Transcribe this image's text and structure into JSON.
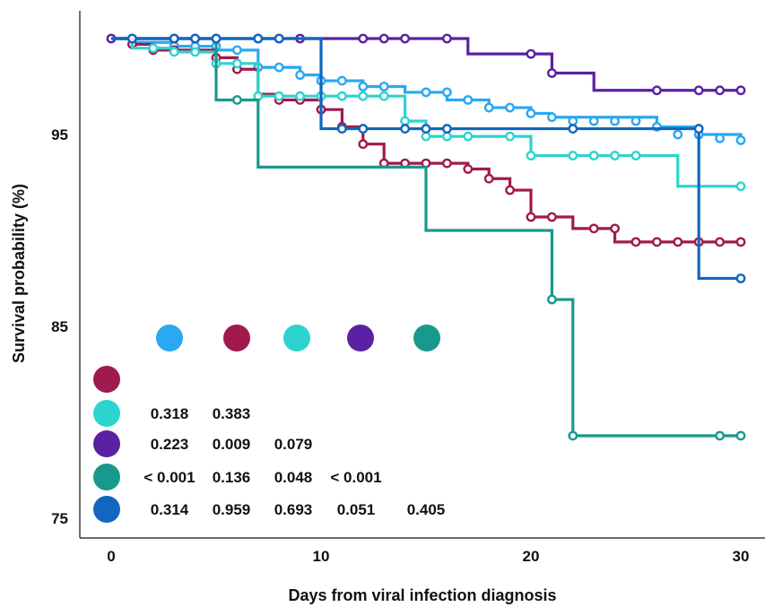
{
  "chart_data": {
    "type": "line",
    "subtype": "kaplan-meier step",
    "title": "",
    "xlabel": "Days from viral infection diagnosis",
    "ylabel": "Survival probability (%)",
    "xlim": [
      0,
      30
    ],
    "ylim": [
      74,
      100
    ],
    "xticks": [
      "0",
      "10",
      "20",
      "30"
    ],
    "yticks": [
      "75",
      "85",
      "95"
    ],
    "xtick_values": [
      0,
      10,
      20,
      30
    ],
    "ytick_values": [
      75,
      85,
      95
    ],
    "grid": false,
    "legend_placement": "inside bottom-left (p-value matrix)",
    "series": [
      {
        "color": "#2aa8f2",
        "steps": [
          [
            0,
            100
          ],
          [
            1,
            99.8
          ],
          [
            3,
            99.6
          ],
          [
            5,
            99.4
          ],
          [
            7,
            98.5
          ],
          [
            9,
            98.1
          ],
          [
            10,
            97.8
          ],
          [
            12,
            97.5
          ],
          [
            14,
            97.2
          ],
          [
            16,
            96.8
          ],
          [
            18,
            96.4
          ],
          [
            20,
            96.1
          ],
          [
            21,
            95.9
          ],
          [
            26,
            95.4
          ],
          [
            28,
            95
          ],
          [
            30,
            94.7
          ]
        ],
        "censored": [
          [
            3,
            99.6
          ],
          [
            4,
            99.6
          ],
          [
            5,
            99.6
          ],
          [
            6,
            99.4
          ],
          [
            7,
            98.5
          ],
          [
            8,
            98.5
          ],
          [
            9,
            98.1
          ],
          [
            10,
            97.8
          ],
          [
            11,
            97.8
          ],
          [
            12,
            97.5
          ],
          [
            13,
            97.5
          ],
          [
            15,
            97.2
          ],
          [
            16,
            97.2
          ],
          [
            17,
            96.8
          ],
          [
            18,
            96.4
          ],
          [
            19,
            96.4
          ],
          [
            20,
            96.1
          ],
          [
            21,
            95.9
          ],
          [
            22,
            95.7
          ],
          [
            23,
            95.7
          ],
          [
            24,
            95.7
          ],
          [
            25,
            95.7
          ],
          [
            26,
            95.4
          ],
          [
            27,
            95
          ],
          [
            28,
            95
          ],
          [
            29,
            94.8
          ],
          [
            30,
            94.7
          ]
        ]
      },
      {
        "color": "#a11a4e",
        "steps": [
          [
            0,
            100
          ],
          [
            1,
            99.7
          ],
          [
            2,
            99.4
          ],
          [
            5,
            99
          ],
          [
            6,
            98.4
          ],
          [
            7,
            97.1
          ],
          [
            8,
            96.8
          ],
          [
            10,
            96.3
          ],
          [
            11,
            95.4
          ],
          [
            12,
            94.5
          ],
          [
            13,
            93.5
          ],
          [
            17,
            93.2
          ],
          [
            18,
            92.7
          ],
          [
            19,
            92.1
          ],
          [
            20,
            90.7
          ],
          [
            22,
            90.1
          ],
          [
            24,
            89.4
          ],
          [
            30,
            89.4
          ]
        ],
        "censored": [
          [
            1,
            99.7
          ],
          [
            2,
            99.4
          ],
          [
            3,
            99.4
          ],
          [
            5,
            99
          ],
          [
            6,
            98.4
          ],
          [
            8,
            96.8
          ],
          [
            9,
            96.8
          ],
          [
            10,
            96.3
          ],
          [
            11,
            95.4
          ],
          [
            12,
            94.5
          ],
          [
            13,
            93.5
          ],
          [
            14,
            93.5
          ],
          [
            15,
            93.5
          ],
          [
            16,
            93.5
          ],
          [
            17,
            93.2
          ],
          [
            18,
            92.7
          ],
          [
            19,
            92.1
          ],
          [
            20,
            90.7
          ],
          [
            21,
            90.7
          ],
          [
            23,
            90.1
          ],
          [
            24,
            90.1
          ],
          [
            25,
            89.4
          ],
          [
            26,
            89.4
          ],
          [
            27,
            89.4
          ],
          [
            28,
            89.4
          ],
          [
            29,
            89.4
          ],
          [
            30,
            89.4
          ]
        ]
      },
      {
        "color": "#2dd4cf",
        "steps": [
          [
            0,
            100
          ],
          [
            1,
            99.5
          ],
          [
            3,
            99.3
          ],
          [
            5,
            98.7
          ],
          [
            7,
            97
          ],
          [
            14,
            95.7
          ],
          [
            15,
            94.9
          ],
          [
            20,
            93.9
          ],
          [
            27,
            92.3
          ],
          [
            30,
            92.3
          ]
        ],
        "censored": [
          [
            2,
            99.5
          ],
          [
            3,
            99.3
          ],
          [
            4,
            99.3
          ],
          [
            5,
            98.7
          ],
          [
            6,
            98.7
          ],
          [
            7,
            97
          ],
          [
            8,
            97
          ],
          [
            9,
            97
          ],
          [
            10,
            97
          ],
          [
            11,
            97
          ],
          [
            12,
            97
          ],
          [
            13,
            97
          ],
          [
            14,
            95.7
          ],
          [
            15,
            94.9
          ],
          [
            16,
            94.9
          ],
          [
            17,
            94.9
          ],
          [
            19,
            94.9
          ],
          [
            20,
            93.9
          ],
          [
            22,
            93.9
          ],
          [
            23,
            93.9
          ],
          [
            24,
            93.9
          ],
          [
            25,
            93.9
          ],
          [
            30,
            92.3
          ]
        ]
      },
      {
        "color": "#5a21a3",
        "steps": [
          [
            0,
            100
          ],
          [
            17,
            99.2
          ],
          [
            21,
            98.2
          ],
          [
            23,
            97.3
          ],
          [
            30,
            97.3
          ]
        ],
        "censored": [
          [
            0,
            100
          ],
          [
            1,
            100
          ],
          [
            3,
            100
          ],
          [
            4,
            100
          ],
          [
            5,
            100
          ],
          [
            7,
            100
          ],
          [
            8,
            100
          ],
          [
            9,
            100
          ],
          [
            12,
            100
          ],
          [
            13,
            100
          ],
          [
            14,
            100
          ],
          [
            16,
            100
          ],
          [
            20,
            99.2
          ],
          [
            21,
            98.2
          ],
          [
            26,
            97.3
          ],
          [
            28,
            97.3
          ],
          [
            29,
            97.3
          ],
          [
            30,
            97.3
          ]
        ]
      },
      {
        "color": "#18998d",
        "steps": [
          [
            0,
            100
          ],
          [
            5,
            96.8
          ],
          [
            7,
            93.3
          ],
          [
            15,
            90
          ],
          [
            21,
            86.4
          ],
          [
            22,
            79.3
          ],
          [
            30,
            79.3
          ]
        ],
        "censored": [
          [
            6,
            96.8
          ],
          [
            21,
            86.4
          ],
          [
            22,
            79.3
          ],
          [
            29,
            79.3
          ],
          [
            30,
            79.3
          ]
        ]
      },
      {
        "color": "#1266bf",
        "steps": [
          [
            0,
            100
          ],
          [
            10,
            95.3
          ],
          [
            28,
            87.5
          ],
          [
            30,
            87.5
          ]
        ],
        "censored": [
          [
            1,
            100
          ],
          [
            3,
            100
          ],
          [
            4,
            100
          ],
          [
            5,
            100
          ],
          [
            7,
            100
          ],
          [
            8,
            100
          ],
          [
            11,
            95.3
          ],
          [
            12,
            95.3
          ],
          [
            14,
            95.3
          ],
          [
            15,
            95.3
          ],
          [
            16,
            95.3
          ],
          [
            22,
            95.3
          ],
          [
            28,
            95.3
          ],
          [
            30,
            87.5
          ]
        ]
      }
    ],
    "pvalue_matrix": {
      "column_colors": [
        "#2aa8f2",
        "#a11a4e",
        "#2dd4cf",
        "#5a21a3",
        "#18998d"
      ],
      "rows": [
        {
          "color": "#a11a4e",
          "values": []
        },
        {
          "color": "#2dd4cf",
          "values": [
            "0.318",
            "0.383"
          ]
        },
        {
          "color": "#5a21a3",
          "values": [
            "0.223",
            "0.009",
            "0.079"
          ]
        },
        {
          "color": "#18998d",
          "values": [
            "< 0.001",
            "0.136",
            "0.048",
            "< 0.001"
          ]
        },
        {
          "color": "#1266bf",
          "values": [
            "0.314",
            "0.959",
            "0.693",
            "0.051",
            "0.405"
          ]
        }
      ]
    }
  }
}
